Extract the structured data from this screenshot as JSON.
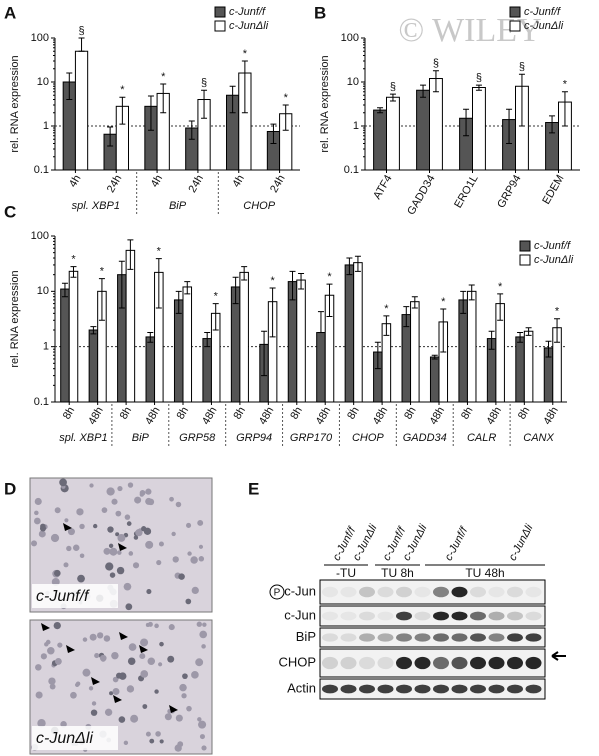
{
  "chart_data": [
    {
      "type": "bar",
      "panel": "A",
      "ylabel": "rel. RNA expression",
      "log": true,
      "ylim": [
        0.1,
        100
      ],
      "yticks": [
        0.1,
        1,
        10,
        100
      ],
      "refline": 1,
      "legend": "upper right",
      "categories": [
        "4h",
        "24h",
        "4h",
        "24h",
        "4h",
        "24h"
      ],
      "groups": [
        "spl. XBP1",
        "BiP",
        "CHOP"
      ],
      "series": [
        {
          "name": "c-Junf/f",
          "color": "#555555",
          "values": [
            10,
            0.65,
            2.8,
            0.9,
            5,
            0.75
          ],
          "errors": [
            6,
            0.3,
            2,
            0.4,
            3,
            0.35
          ]
        },
        {
          "name": "c-JunΔli",
          "color": "#ffffff",
          "values": [
            50,
            2.8,
            5.5,
            4,
            16,
            1.9
          ],
          "errors": [
            50,
            1.7,
            3.5,
            2.5,
            14,
            1.1
          ],
          "markers": [
            "§",
            "*",
            "*",
            "§",
            "*",
            "*"
          ]
        }
      ]
    },
    {
      "type": "bar",
      "panel": "B",
      "ylabel": "rel. RNA expression",
      "log": true,
      "ylim": [
        0.1,
        100
      ],
      "yticks": [
        0.1,
        1,
        10,
        100
      ],
      "refline": 1,
      "legend": "upper right",
      "categories": [
        "ATF4",
        "GADD34",
        "ERO1L",
        "GRP94",
        "EDEM"
      ],
      "series": [
        {
          "name": "c-Junf/f",
          "color": "#555555",
          "values": [
            2.3,
            6.5,
            1.5,
            1.4,
            1.2
          ],
          "errors": [
            0.3,
            2,
            0.9,
            1,
            0.5
          ]
        },
        {
          "name": "c-JunΔli",
          "color": "#ffffff",
          "values": [
            4.5,
            12,
            7.5,
            8,
            3.5
          ],
          "errors": [
            0.8,
            6,
            1,
            7,
            2.5
          ],
          "markers": [
            "§",
            "§",
            "§",
            "§",
            "*"
          ]
        }
      ]
    },
    {
      "type": "bar",
      "panel": "C",
      "ylabel": "rel. RNA expression",
      "log": true,
      "ylim": [
        0.1,
        100
      ],
      "yticks": [
        0.1,
        1,
        10,
        100
      ],
      "refline": 1,
      "legend": "right",
      "categories": [
        "8h",
        "48h",
        "8h",
        "48h",
        "8h",
        "48h",
        "8h",
        "48h",
        "8h",
        "48h",
        "8h",
        "48h",
        "8h",
        "48h",
        "8h",
        "48h",
        "8h",
        "48h"
      ],
      "groups": [
        "spl. XBP1",
        "BiP",
        "GRP58",
        "GRP94",
        "GRP170",
        "CHOP",
        "GADD34",
        "CALR",
        "CANX"
      ],
      "series": [
        {
          "name": "c-Junf/f",
          "color": "#555555",
          "values": [
            11,
            2,
            20,
            1.5,
            7,
            1.4,
            12,
            1.1,
            15,
            1.8,
            30,
            0.8,
            3.8,
            0.65,
            7,
            1.4,
            1.5,
            0.95
          ],
          "errors": [
            3,
            0.3,
            15,
            0.3,
            3,
            0.4,
            6,
            0.8,
            8,
            2.5,
            10,
            0.4,
            1.5,
            0.05,
            3,
            0.5,
            0.3,
            0.3
          ]
        },
        {
          "name": "c-JunΔli",
          "color": "#ffffff",
          "values": [
            23,
            10,
            55,
            22,
            12,
            4,
            22,
            6.5,
            16,
            8.5,
            33,
            2.6,
            6.5,
            2.8,
            10,
            6,
            1.9,
            2.2
          ],
          "errors": [
            5,
            7,
            30,
            17,
            3,
            2,
            6,
            5,
            5,
            5,
            10,
            1,
            1.5,
            2,
            3,
            3,
            0.3,
            1
          ],
          "markers": [
            "*",
            "*",
            null,
            "*",
            null,
            "*",
            null,
            "*",
            null,
            "*",
            null,
            "*",
            null,
            "*",
            null,
            "*",
            null,
            "*"
          ]
        }
      ]
    }
  ],
  "watermark": "© WILEY",
  "panel_d": {
    "label": "D",
    "captions": [
      "c-Junf/f",
      "c-JunΔli"
    ]
  },
  "panel_e": {
    "label": "E",
    "lanes": [
      "c-Junf/f",
      "c-JunΔli",
      "c-Junf/f",
      "c-JunΔli",
      "c-Junf/f",
      "c-JunΔli"
    ],
    "groups": [
      "-TU",
      "TU 8h",
      "TU 48h"
    ],
    "phospho": "P",
    "rows": [
      "c-Jun",
      "c-Jun",
      "BiP",
      "CHOP",
      "Actin"
    ]
  }
}
